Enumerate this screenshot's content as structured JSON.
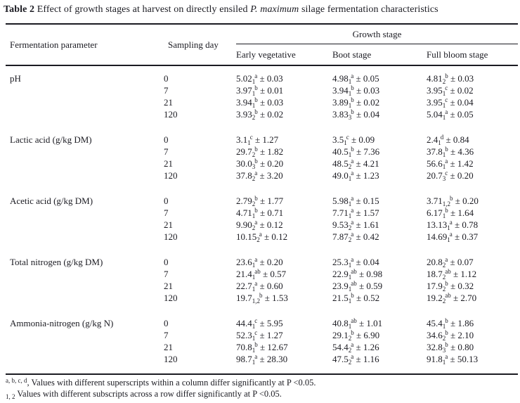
{
  "title": {
    "label": "Table 2",
    "text_before_italic": " Effect of growth stages at harvest on directly ensiled ",
    "italic": "P. maximum",
    "text_after_italic": " silage fermentation characteristics"
  },
  "header": {
    "col1": "Fermentation parameter",
    "col2": "Sampling day",
    "group": "Growth stage",
    "subcols": [
      "Early vegetative",
      "Boot stage",
      "Full bloom stage"
    ]
  },
  "plus_minus": "±",
  "groups": [
    {
      "parameter": "pH",
      "rows": [
        {
          "day": "0",
          "cells": [
            {
              "v": "5.02",
              "sub": "1",
              "sup": "a",
              "err": "0.03"
            },
            {
              "v": "4.98",
              "sub": "1",
              "sup": "a",
              "err": "0.05"
            },
            {
              "v": "4.81",
              "sub": "2",
              "sup": "b",
              "err": "0.03"
            }
          ]
        },
        {
          "day": "7",
          "cells": [
            {
              "v": "3.97",
              "sub": "1",
              "sup": "b",
              "err": "0.01"
            },
            {
              "v": "3.94",
              "sub": "1",
              "sup": "b",
              "err": "0.03"
            },
            {
              "v": "3.95",
              "sub": "1",
              "sup": "c",
              "err": "0.02"
            }
          ]
        },
        {
          "day": "21",
          "cells": [
            {
              "v": "3.94",
              "sub": "1",
              "sup": "b",
              "err": "0.03"
            },
            {
              "v": "3.89",
              "sub": "1",
              "sup": "b",
              "err": "0.02"
            },
            {
              "v": "3.95",
              "sub": "1",
              "sup": "c",
              "err": "0.04"
            }
          ]
        },
        {
          "day": "120",
          "cells": [
            {
              "v": "3.93",
              "sub": "2",
              "sup": "b",
              "err": "0.02"
            },
            {
              "v": "3.83",
              "sub": "3",
              "sup": "b",
              "err": "0.04"
            },
            {
              "v": "5.04",
              "sub": "1",
              "sup": "a",
              "err": "0.05"
            }
          ]
        }
      ]
    },
    {
      "parameter": "Lactic acid (g/kg DM)",
      "rows": [
        {
          "day": "0",
          "cells": [
            {
              "v": "3.1",
              "sub": "1",
              "sup": "c",
              "err": "1.27"
            },
            {
              "v": "3.5",
              "sub": "1",
              "sup": "c",
              "err": "0.09"
            },
            {
              "v": "2.4",
              "sub": "1",
              "sup": "d",
              "err": "0.84"
            }
          ]
        },
        {
          "day": "7",
          "cells": [
            {
              "v": "29.7",
              "sub": "2",
              "sup": "b",
              "err": "1.82"
            },
            {
              "v": "40.5",
              "sub": "1",
              "sup": "b",
              "err": "7.36"
            },
            {
              "v": "37.8",
              "sub": "1",
              "sup": "b",
              "err": "4.36"
            }
          ]
        },
        {
          "day": "21",
          "cells": [
            {
              "v": "30.0",
              "sub": "3",
              "sup": "b",
              "err": "0.20"
            },
            {
              "v": "48.5",
              "sub": "2",
              "sup": "a",
              "err": "4.21"
            },
            {
              "v": "56.6",
              "sub": "1",
              "sup": "a",
              "err": "1.42"
            }
          ]
        },
        {
          "day": "120",
          "cells": [
            {
              "v": "37.8",
              "sub": "2",
              "sup": "a",
              "err": "3.20"
            },
            {
              "v": "49.0",
              "sub": "1",
              "sup": "a",
              "err": "1.23"
            },
            {
              "v": "20.7",
              "sub": "3",
              "sup": "c",
              "err": "0.20"
            }
          ]
        }
      ]
    },
    {
      "parameter": "Acetic acid (g/kg DM)",
      "rows": [
        {
          "day": "0",
          "cells": [
            {
              "v": "2.79",
              "sub": "2",
              "sup": "b",
              "err": "1.77"
            },
            {
              "v": "5.98",
              "sub": "1",
              "sup": "a",
              "err": "0.15"
            },
            {
              "v": "3.71",
              "sub": "1,2",
              "sup": "b",
              "err": "0.20"
            }
          ]
        },
        {
          "day": "7",
          "cells": [
            {
              "v": "4.71",
              "sub": "1",
              "sup": "b",
              "err": "0.71"
            },
            {
              "v": "7.71",
              "sub": "1",
              "sup": "a",
              "err": "1.57"
            },
            {
              "v": "6.17",
              "sub": "1",
              "sup": "b",
              "err": "1.64"
            }
          ]
        },
        {
          "day": "21",
          "cells": [
            {
              "v": "9.90",
              "sub": "2",
              "sup": "a",
              "err": "0.12"
            },
            {
              "v": "9.53",
              "sub": "2",
              "sup": "a",
              "err": "1.61"
            },
            {
              "v": "13.13",
              "sub": "1",
              "sup": "a",
              "err": "0.78"
            }
          ]
        },
        {
          "day": "120",
          "cells": [
            {
              "v": "10.15",
              "sub": "2",
              "sup": "a",
              "err": "0.12"
            },
            {
              "v": "7.87",
              "sub": "2",
              "sup": "a",
              "err": "0.42"
            },
            {
              "v": "14.69",
              "sub": "1",
              "sup": "a",
              "err": "0.37"
            }
          ]
        }
      ]
    },
    {
      "parameter": "Total nitrogen (g/kg DM)",
      "rows": [
        {
          "day": "0",
          "cells": [
            {
              "v": "23.6",
              "sub": "1",
              "sup": "a",
              "err": "0.20"
            },
            {
              "v": "25.3",
              "sub": "1",
              "sup": "a",
              "err": "0.04"
            },
            {
              "v": "20.8",
              "sub": "2",
              "sup": "a",
              "err": "0.07"
            }
          ]
        },
        {
          "day": "7",
          "cells": [
            {
              "v": "21.4",
              "sub": "1",
              "sup": "ab",
              "err": "0.57"
            },
            {
              "v": "22.9",
              "sub": "1",
              "sup": "ab",
              "err": "0.98"
            },
            {
              "v": "18.7",
              "sub": "2",
              "sup": "ab",
              "err": "1.12"
            }
          ]
        },
        {
          "day": "21",
          "cells": [
            {
              "v": "22.7",
              "sub": "1",
              "sup": "a",
              "err": "0.60"
            },
            {
              "v": "23.9",
              "sub": "1",
              "sup": "ab",
              "err": "0.59"
            },
            {
              "v": "17.9",
              "sub": "2",
              "sup": "b",
              "err": "0.32"
            }
          ]
        },
        {
          "day": "120",
          "cells": [
            {
              "v": "19.7",
              "sub": "1,2",
              "sup": "b",
              "err": "1.53"
            },
            {
              "v": "21.5",
              "sub": "1",
              "sup": "b",
              "err": "0.52"
            },
            {
              "v": "19.2",
              "sub": "2",
              "sup": "ab",
              "err": "2.70"
            }
          ]
        }
      ]
    },
    {
      "parameter": "Ammonia-nitrogen (g/kg N)",
      "rows": [
        {
          "day": "0",
          "cells": [
            {
              "v": "44.4",
              "sub": "1",
              "sup": "c",
              "err": "5.95"
            },
            {
              "v": "40.8",
              "sub": "1",
              "sup": "ab",
              "err": "1.01"
            },
            {
              "v": "45.4",
              "sub": "1",
              "sup": "b",
              "err": "1.86"
            }
          ]
        },
        {
          "day": "7",
          "cells": [
            {
              "v": "52.3",
              "sub": "1",
              "sup": "c",
              "err": "1.27"
            },
            {
              "v": "29.1",
              "sub": "2",
              "sup": "b",
              "err": "6.90"
            },
            {
              "v": "34.6",
              "sub": "2",
              "sup": "b",
              "err": "2.10"
            }
          ]
        },
        {
          "day": "21",
          "cells": [
            {
              "v": "70.8",
              "sub": "1",
              "sup": "b",
              "err": "12.67"
            },
            {
              "v": "54.4",
              "sub": "2",
              "sup": "a",
              "err": "1.26"
            },
            {
              "v": "32.8",
              "sub": "3",
              "sup": "b",
              "err": "0.80"
            }
          ]
        },
        {
          "day": "120",
          "cells": [
            {
              "v": "98.7",
              "sub": "1",
              "sup": "a",
              "err": "28.30"
            },
            {
              "v": "47.5",
              "sub": "2",
              "sup": "a",
              "err": "1.16"
            },
            {
              "v": "91.8",
              "sub": "1",
              "sup": "a",
              "err": "50.13"
            }
          ]
        }
      ]
    }
  ],
  "footnotes": [
    {
      "marker": "a, b, c, d",
      "text": ", Values with different superscripts within a column differ significantly at P <0.05."
    },
    {
      "marker": "1, 2",
      "text": " Values with different subscripts across a row differ significantly at P <0.05."
    }
  ],
  "colors": {
    "text": "#1b1b22",
    "rule": "#1b1b22",
    "background": "#ffffff"
  }
}
